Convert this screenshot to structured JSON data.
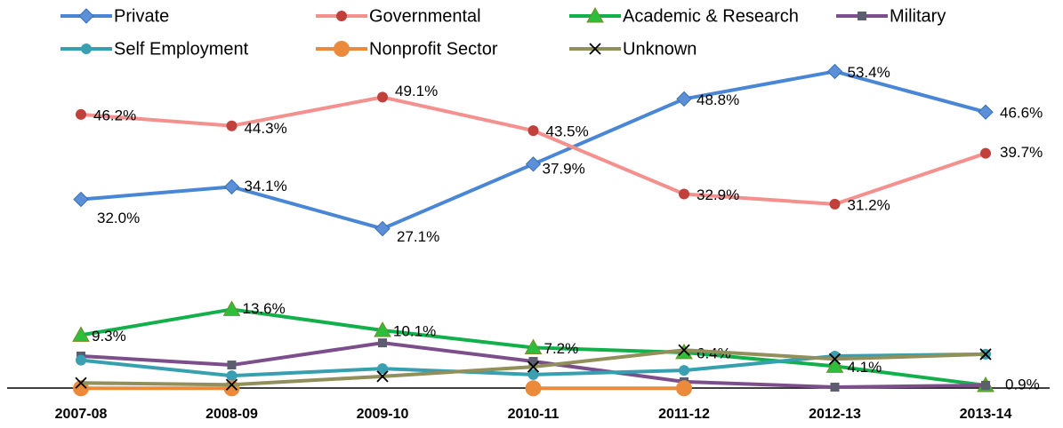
{
  "chart_data": {
    "type": "line",
    "categories": [
      "2007-08",
      "2008-09",
      "2009-10",
      "2010-11",
      "2011-12",
      "2012-13",
      "2013-14"
    ],
    "ylim": [
      0,
      60
    ],
    "series": [
      {
        "name": "Private",
        "color": "#4a86d6",
        "marker": "diamond",
        "marker_color": "#5b8fd8",
        "values": [
          32.0,
          34.1,
          27.1,
          37.9,
          48.8,
          53.4,
          46.6
        ],
        "value_labels": [
          "32.0%",
          "34.1%",
          "27.1%",
          "37.9%",
          "48.8%",
          "53.4%",
          "46.6%"
        ]
      },
      {
        "name": "Governmental",
        "color": "#f4908e",
        "marker": "circle",
        "marker_color": "#c0413c",
        "values": [
          46.2,
          44.3,
          49.1,
          43.5,
          32.9,
          31.2,
          39.7
        ],
        "value_labels": [
          "46.2%",
          "44.3%",
          "49.1%",
          "43.5%",
          "32.9%",
          "31.2%",
          "39.7%"
        ]
      },
      {
        "name": "Academic & Research",
        "color": "#12b04b",
        "marker": "triangle",
        "marker_color": "#2cbf3b",
        "values": [
          9.3,
          13.6,
          10.1,
          7.2,
          6.4,
          4.1,
          0.9
        ],
        "value_labels": [
          "9.3%",
          "13.6%",
          "10.1%",
          "7.2%",
          "6.4%",
          "4.1%",
          "0.9%"
        ]
      },
      {
        "name": "Military",
        "color": "#7c4f8c",
        "marker": "square",
        "marker_color": "#5d5d70",
        "values": [
          5.8,
          4.3,
          8.0,
          4.9,
          1.5,
          0.6,
          0.9
        ]
      },
      {
        "name": "Self Employment",
        "color": "#36a0b0",
        "marker": "circle",
        "marker_color": "#3a9fb0",
        "values": [
          5.1,
          2.5,
          3.7,
          2.7,
          3.4,
          5.8,
          6.1
        ]
      },
      {
        "name": "Nonprofit Sector",
        "color": "#ea8a3a",
        "marker": "bigcircle",
        "marker_color": "#ea8a3a",
        "values": [
          0.4,
          0.4,
          null,
          0.4,
          0.4,
          null,
          null
        ]
      },
      {
        "name": "Unknown",
        "color": "#918f5a",
        "marker": "x",
        "marker_color": "#000000",
        "values": [
          1.3,
          1.0,
          2.4,
          4.0,
          6.8,
          5.3,
          6.1
        ]
      }
    ]
  }
}
